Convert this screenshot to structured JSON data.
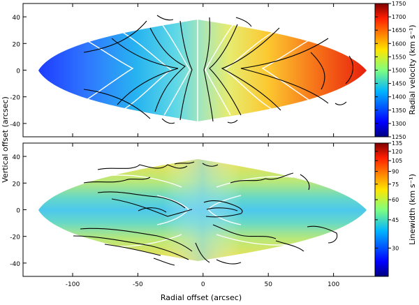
{
  "chart_data": [
    {
      "type": "heatmap",
      "panel": "top",
      "ylabel": "Vertical offset (arcsec)",
      "ylim": [
        -50,
        50
      ],
      "xlim": [
        -138,
        135
      ],
      "yticks": [
        40,
        20,
        0,
        -20,
        -40
      ],
      "colorbar": {
        "label": "Radial velocity (km s⁻¹)",
        "range": [
          1250,
          1750
        ],
        "ticks": [
          1250,
          1300,
          1350,
          1400,
          1450,
          1500,
          1550,
          1600,
          1650,
          1700,
          1750
        ],
        "scale": "linear",
        "colormap": "jet"
      }
    },
    {
      "type": "heatmap",
      "panel": "bottom",
      "xlabel": "Radial offset (arcsec)",
      "ylabel": "Vertical offset (arcsec)",
      "xlim": [
        -138,
        135
      ],
      "ylim": [
        -50,
        50
      ],
      "xticks": [
        -100,
        -50,
        0,
        50,
        100
      ],
      "yticks": [
        40,
        20,
        0,
        -20,
        -40
      ],
      "colorbar": {
        "label": "Linewidth (km s⁻¹)",
        "range": [
          20,
          135
        ],
        "ticks": [
          30,
          45,
          60,
          75,
          90,
          105,
          120,
          135
        ],
        "scale": "log",
        "colormap": "jet"
      }
    }
  ],
  "colors": {
    "contour_data": "#000000",
    "contour_model": "#ffffff",
    "axis": "#000000"
  }
}
